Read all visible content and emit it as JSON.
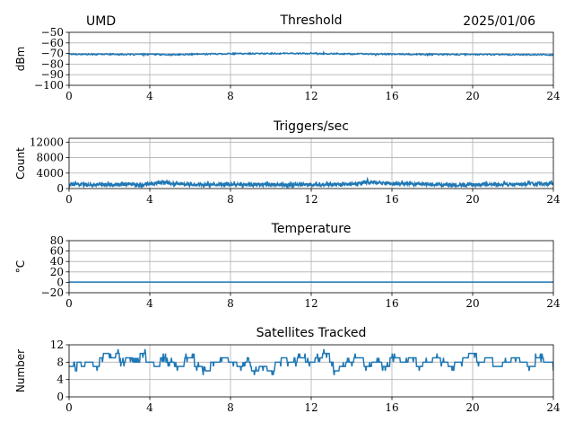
{
  "header": {
    "left": "UMD",
    "right": "2025/01/06"
  },
  "colors": {
    "series": "#1f77b4",
    "grid": "#b0b0b0",
    "axes": "#000000"
  },
  "chart_data": [
    {
      "id": "threshold",
      "type": "line",
      "title": "Threshold",
      "xlabel": "",
      "ylabel": "dBm",
      "xlim": [
        0,
        24
      ],
      "ylim": [
        -100,
        -50
      ],
      "xticks": [
        0,
        4,
        8,
        12,
        16,
        20,
        24
      ],
      "yticks": [
        -100,
        -90,
        -80,
        -70,
        -60,
        -50
      ],
      "ytick_labels": [
        "−100",
        "−90",
        "−80",
        "−70",
        "−60",
        "−50"
      ],
      "grid": true,
      "series": [
        {
          "x": [
            0,
            1,
            2,
            3,
            4,
            5,
            6,
            7,
            8,
            9,
            10,
            11,
            12,
            13,
            14,
            15,
            16,
            17,
            18,
            19,
            20,
            21,
            22,
            23,
            24
          ],
          "y": [
            -70.5,
            -70.8,
            -70.6,
            -70.9,
            -70.7,
            -71.2,
            -70.8,
            -70.4,
            -70.2,
            -70.1,
            -70.0,
            -69.9,
            -70.0,
            -70.2,
            -70.4,
            -70.5,
            -70.6,
            -70.7,
            -70.8,
            -70.9,
            -70.8,
            -70.9,
            -71.0,
            -71.1,
            -71.2
          ],
          "noise": 0.6,
          "samples": 800
        }
      ]
    },
    {
      "id": "triggers",
      "type": "line",
      "title": "Triggers/sec",
      "xlabel": "",
      "ylabel": "Count",
      "xlim": [
        0,
        24
      ],
      "ylim": [
        0,
        13000
      ],
      "xticks": [
        0,
        4,
        8,
        12,
        16,
        20,
        24
      ],
      "yticks": [
        0,
        4000,
        8000,
        12000
      ],
      "ytick_labels": [
        "0",
        "4000",
        "8000",
        "12000"
      ],
      "grid": true,
      "series": [
        {
          "x": [
            0,
            2,
            4,
            4.5,
            6,
            8,
            10,
            12,
            14,
            14.8,
            16,
            17,
            18,
            20,
            22,
            24
          ],
          "y": [
            1100,
            1000,
            1200,
            1600,
            1000,
            1100,
            1000,
            1000,
            1100,
            1700,
            1300,
            1200,
            1000,
            1000,
            1100,
            1300
          ],
          "noise": 450,
          "samples": 1400
        }
      ]
    },
    {
      "id": "temperature",
      "type": "line",
      "title": "Temperature",
      "xlabel": "",
      "ylabel": "°C",
      "xlim": [
        0,
        24
      ],
      "ylim": [
        -20,
        80
      ],
      "xticks": [
        0,
        4,
        8,
        12,
        16,
        20,
        24
      ],
      "yticks": [
        -20,
        0,
        20,
        40,
        60,
        80
      ],
      "ytick_labels": [
        "−20",
        "0",
        "20",
        "40",
        "60",
        "80"
      ],
      "grid": true,
      "series": [
        {
          "x": [
            0,
            24
          ],
          "y": [
            0.5,
            0.5
          ],
          "noise": 0,
          "samples": 2
        }
      ]
    },
    {
      "id": "satellites",
      "type": "line",
      "title": "Satellites Tracked",
      "xlabel": "",
      "ylabel": "Number",
      "xlim": [
        0,
        24
      ],
      "ylim": [
        0,
        12
      ],
      "xticks": [
        0,
        4,
        8,
        12,
        16,
        20,
        24
      ],
      "yticks": [
        0,
        4,
        8,
        12
      ],
      "ytick_labels": [
        "0",
        "4",
        "8",
        "12"
      ],
      "grid": true,
      "series": [
        {
          "x": [
            0,
            0.3,
            0.4,
            0.6,
            0.8,
            1.2,
            1.5,
            1.7,
            2.0,
            2.3,
            2.5,
            2.8,
            3.2,
            3.5,
            3.8,
            4.2,
            4.5,
            4.8,
            5.3,
            5.7,
            6.2,
            6.6,
            7.0,
            7.5,
            7.9,
            8.3,
            8.6,
            9.0,
            9.4,
            9.8,
            10.2,
            10.5,
            10.8,
            11.3,
            11.7,
            12.2,
            12.6,
            12.9,
            13.1,
            13.4,
            13.7,
            14.1,
            14.6,
            15.0,
            15.5,
            15.9,
            16.4,
            16.8,
            17.2,
            17.5,
            18.0,
            18.4,
            18.8,
            19.1,
            19.5,
            19.8,
            20.2,
            20.6,
            21.0,
            21.5,
            21.9,
            22.3,
            22.7,
            23.1,
            23.5,
            23.9,
            24.0
          ],
          "y": [
            7,
            6,
            8,
            7,
            8,
            7,
            9,
            10,
            9,
            10,
            8,
            9,
            8,
            10,
            8,
            7,
            9,
            8,
            7,
            9,
            7,
            6,
            8,
            9,
            8,
            7,
            8,
            6,
            7,
            6,
            8,
            9,
            8,
            9,
            8,
            9,
            10,
            8,
            6,
            7,
            8,
            9,
            7,
            8,
            7,
            9,
            8,
            9,
            7,
            8,
            9,
            8,
            7,
            8,
            9,
            10,
            8,
            9,
            7,
            8,
            9,
            8,
            7,
            9,
            8,
            8,
            6
          ],
          "jitter": 1,
          "samples": 900
        }
      ]
    }
  ]
}
